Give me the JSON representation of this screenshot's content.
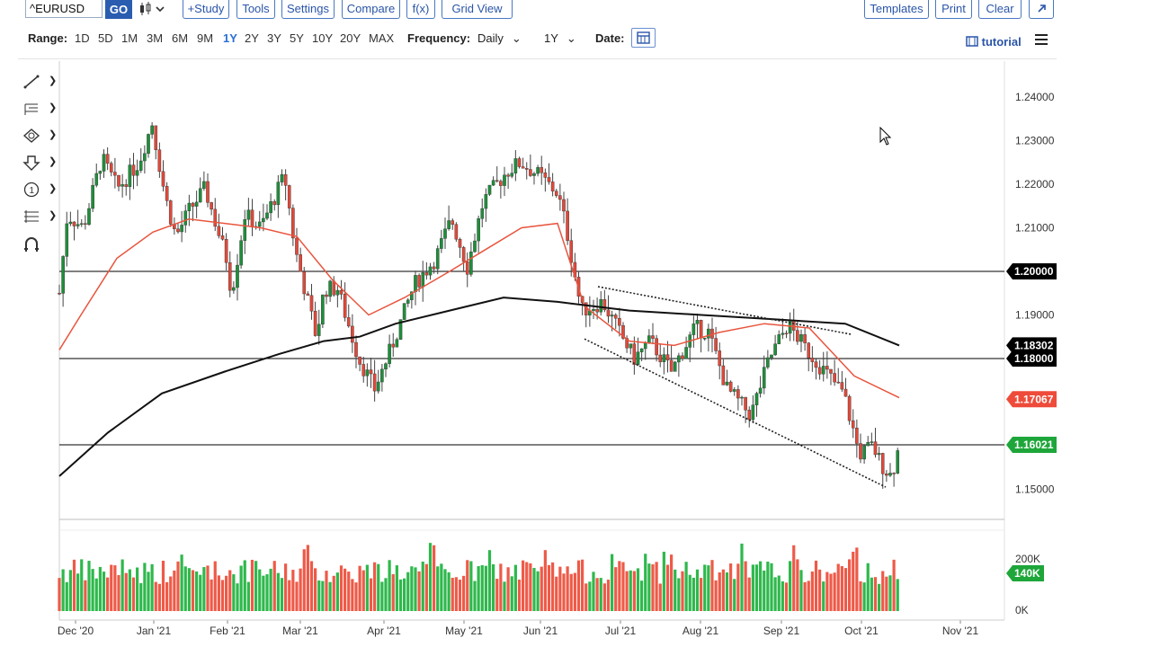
{
  "toolbar": {
    "symbol": "^EURUSD",
    "go_label": "GO",
    "study_label": "+Study",
    "tools_label": "Tools",
    "settings_label": "Settings",
    "compare_label": "Compare",
    "fx_label": "f(x)",
    "gridview_label": "Grid View",
    "templates_label": "Templates",
    "print_label": "Print",
    "clear_label": "Clear"
  },
  "rangebar": {
    "label": "Range:",
    "items": [
      "1D",
      "5D",
      "1M",
      "3M",
      "6M",
      "9M",
      "1Y",
      "2Y",
      "3Y",
      "5Y",
      "10Y",
      "20Y",
      "MAX"
    ],
    "active": "1Y",
    "frequency_label": "Frequency:",
    "frequency_value": "Daily",
    "period_value": "1Y",
    "date_label": "Date:",
    "tutorial_label": "tutorial"
  },
  "drawing_tools": [
    "line-tool-icon",
    "text-tool-icon",
    "shape-tool-icon",
    "arrow-tool-icon",
    "annotation-tool-icon",
    "fibonacci-tool-icon",
    "magnet-tool-icon"
  ],
  "chart_data": {
    "type": "candlestick",
    "symbol": "^EURUSD",
    "frequency": "Daily",
    "x_ticks": [
      "Dec '20",
      "Jan '21",
      "Feb '21",
      "Mar '21",
      "Apr '21",
      "May '21",
      "Jun '21",
      "Jul '21",
      "Aug '21",
      "Sep '21",
      "Oct '21",
      "Nov '21"
    ],
    "y_ticks": [
      "1.24000",
      "1.23000",
      "1.22000",
      "1.21000",
      "1.19000",
      "1.15000"
    ],
    "ylim": [
      1.145,
      1.245
    ],
    "horizontal_levels": [
      {
        "label": "1.20000",
        "value": 1.2,
        "color": "#000000"
      },
      {
        "label": "1.18000",
        "value": 1.18,
        "color": "#000000"
      },
      {
        "label": "1.16021",
        "value": 1.16021,
        "color": "#000000"
      }
    ],
    "price_tags": [
      {
        "label": "1.18302",
        "value": 1.18302,
        "color": "#000000"
      },
      {
        "label": "1.17067",
        "value": 1.17067,
        "color": "#ee4b3a"
      },
      {
        "label": "1.16021",
        "value": 1.16021,
        "color": "#1ea63a"
      }
    ],
    "price_path": [
      [
        "Dec 1",
        1.195
      ],
      [
        "Dec 4",
        1.213
      ],
      [
        "Dec 10",
        1.21
      ],
      [
        "Dec 17",
        1.226
      ],
      [
        "Dec 23",
        1.219
      ],
      [
        "Dec 31",
        1.225
      ],
      [
        "Jan 6",
        1.234
      ],
      [
        "Jan 11",
        1.217
      ],
      [
        "Jan 15",
        1.208
      ],
      [
        "Jan 20",
        1.214
      ],
      [
        "Jan 26",
        1.219
      ],
      [
        "Feb 3",
        1.203
      ],
      [
        "Feb 5",
        1.195
      ],
      [
        "Feb 10",
        1.213
      ],
      [
        "Feb 16",
        1.21
      ],
      [
        "Feb 25",
        1.222
      ],
      [
        "Mar 1",
        1.205
      ],
      [
        "Mar 5",
        1.195
      ],
      [
        "Mar 9",
        1.185
      ],
      [
        "Mar 12",
        1.196
      ],
      [
        "Mar 17",
        1.196
      ],
      [
        "Mar 25",
        1.18
      ],
      [
        "Mar 31",
        1.173
      ],
      [
        "Apr 6",
        1.182
      ],
      [
        "Apr 15",
        1.197
      ],
      [
        "Apr 23",
        1.203
      ],
      [
        "Apr 29",
        1.212
      ],
      [
        "May 5",
        1.201
      ],
      [
        "May 11",
        1.216
      ],
      [
        "May 20",
        1.223
      ],
      [
        "May 25",
        1.225
      ],
      [
        "Jun 1",
        1.222
      ],
      [
        "Jun 8",
        1.218
      ],
      [
        "Jun 11",
        1.211
      ],
      [
        "Jun 17",
        1.191
      ],
      [
        "Jun 25",
        1.193
      ],
      [
        "Jul 7",
        1.18
      ],
      [
        "Jul 13",
        1.184
      ],
      [
        "Jul 21",
        1.177
      ],
      [
        "Jul 30",
        1.187
      ],
      [
        "Aug 4",
        1.186
      ],
      [
        "Aug 11",
        1.173
      ],
      [
        "Aug 20",
        1.167
      ],
      [
        "Aug 27",
        1.18
      ],
      [
        "Sep 3",
        1.188
      ],
      [
        "Sep 10",
        1.182
      ],
      [
        "Sep 17",
        1.177
      ],
      [
        "Sep 24",
        1.172
      ],
      [
        "Sep 30",
        1.158
      ],
      [
        "Oct 5",
        1.16
      ],
      [
        "Oct 8",
        1.156
      ],
      [
        "Oct 12",
        1.153
      ],
      [
        "Oct 15",
        1.16
      ]
    ],
    "series": [
      {
        "name": "moving average (red)",
        "color": "#e8553e",
        "values": [
          [
            1.182
          ],
          [
            1.19
          ],
          [
            1.203
          ],
          [
            1.209
          ],
          [
            1.212
          ],
          [
            1.211
          ],
          [
            1.21
          ],
          [
            1.208
          ],
          [
            1.198
          ],
          [
            1.19
          ],
          [
            1.194
          ],
          [
            1.2
          ],
          [
            1.205
          ],
          [
            1.21
          ],
          [
            1.211
          ],
          [
            1.192
          ],
          [
            1.184
          ],
          [
            1.183
          ],
          [
            1.186
          ],
          [
            1.188
          ],
          [
            1.187
          ],
          [
            1.176
          ],
          [
            1.171
          ]
        ]
      },
      {
        "name": "moving average (black)",
        "color": "#111111",
        "values": [
          [
            1.153
          ],
          [
            1.163
          ],
          [
            1.172
          ],
          [
            1.177
          ],
          [
            1.181
          ],
          [
            1.184
          ],
          [
            1.185
          ],
          [
            1.188
          ],
          [
            1.191
          ],
          [
            1.194
          ],
          [
            1.193
          ],
          [
            1.191
          ],
          [
            1.19
          ],
          [
            1.189
          ],
          [
            1.188
          ],
          [
            1.183
          ]
        ]
      }
    ],
    "volume_axis": [
      "200K",
      "0K"
    ],
    "volume_tag": "140K"
  }
}
